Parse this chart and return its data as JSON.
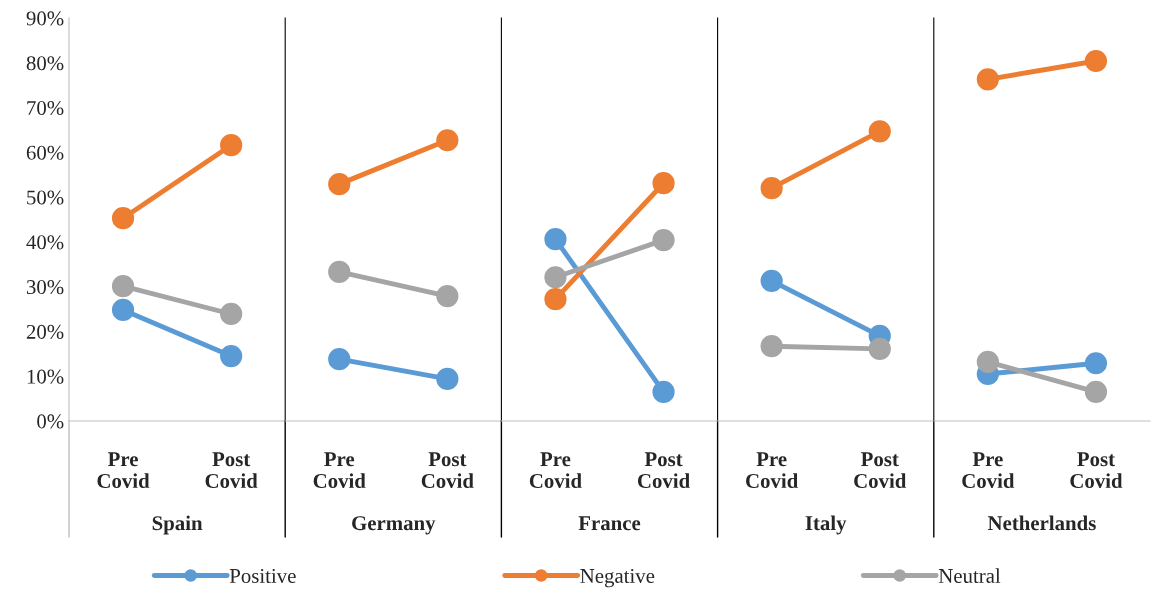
{
  "chart_data": [
    {
      "type": "line",
      "title": "Spain",
      "categories": [
        "Pre\nCovid",
        "Post\nCovid"
      ],
      "ylim": [
        0,
        90
      ],
      "yticks": [
        {
          "value": 0,
          "label": "0%"
        },
        {
          "value": 10,
          "label": "10%"
        },
        {
          "value": 20,
          "label": "20%"
        },
        {
          "value": 30,
          "label": "30%"
        },
        {
          "value": 40,
          "label": "40%"
        },
        {
          "value": 50,
          "label": "50%"
        },
        {
          "value": 60,
          "label": "60%"
        },
        {
          "value": 70,
          "label": "70%"
        },
        {
          "value": 80,
          "label": "80%"
        },
        {
          "value": 90,
          "label": "90%"
        }
      ],
      "marker": "circle",
      "legend": "bottom",
      "grid": false,
      "series": [
        {
          "name": "Positive",
          "color": "#5b9bd5",
          "values": [
            24.8,
            14.5
          ]
        },
        {
          "name": "Negative",
          "color": "#ed7d31",
          "values": [
            45.3,
            61.6
          ]
        },
        {
          "name": "Neutral",
          "color": "#a5a5a5",
          "values": [
            30.1,
            23.9
          ]
        }
      ]
    },
    {
      "type": "line",
      "title": "Germany",
      "categories": [
        "Pre\nCovid",
        "Post\nCovid"
      ],
      "ylim": [
        0,
        90
      ],
      "tick_labels": "x",
      "marker": "circle",
      "grid": false,
      "series": [
        {
          "color": "#5b9bd5",
          "values": [
            13.8,
            9.4
          ]
        },
        {
          "color": "#ed7d31",
          "values": [
            52.9,
            62.7
          ]
        },
        {
          "color": "#a5a5a5",
          "values": [
            33.3,
            27.9
          ]
        }
      ]
    },
    {
      "type": "line",
      "title": "France",
      "categories": [
        "Pre\nCovid",
        "Post\nCovid"
      ],
      "ylim": [
        0,
        90
      ],
      "tick_labels": "x",
      "marker": "circle",
      "grid": false,
      "series": [
        {
          "color": "#5b9bd5",
          "values": [
            40.6,
            6.5
          ]
        },
        {
          "color": "#ed7d31",
          "values": [
            27.2,
            53.1
          ]
        },
        {
          "color": "#a5a5a5",
          "values": [
            32.1,
            40.4
          ]
        }
      ]
    },
    {
      "type": "line",
      "title": "Italy",
      "categories": [
        "Pre\nCovid",
        "Post\nCovid"
      ],
      "ylim": [
        0,
        90
      ],
      "tick_labels": "x",
      "marker": "circle",
      "grid": false,
      "series": [
        {
          "color": "#5b9bd5",
          "values": [
            31.3,
            19.0
          ]
        },
        {
          "color": "#ed7d31",
          "values": [
            52.0,
            64.7
          ]
        },
        {
          "color": "#a5a5a5",
          "values": [
            16.7,
            16.1
          ]
        }
      ]
    },
    {
      "type": "line",
      "title": "Netherlands",
      "categories": [
        "Pre\nCovid",
        "Post\nCovid"
      ],
      "ylim": [
        0,
        90
      ],
      "tick_labels": "x",
      "marker": "circle",
      "grid": false,
      "series": [
        {
          "color": "#5b9bd5",
          "values": [
            10.5,
            12.9
          ]
        },
        {
          "color": "#ed7d31",
          "values": [
            76.3,
            80.4
          ]
        },
        {
          "color": "#a5a5a5",
          "values": [
            13.2,
            6.5
          ]
        }
      ]
    }
  ]
}
